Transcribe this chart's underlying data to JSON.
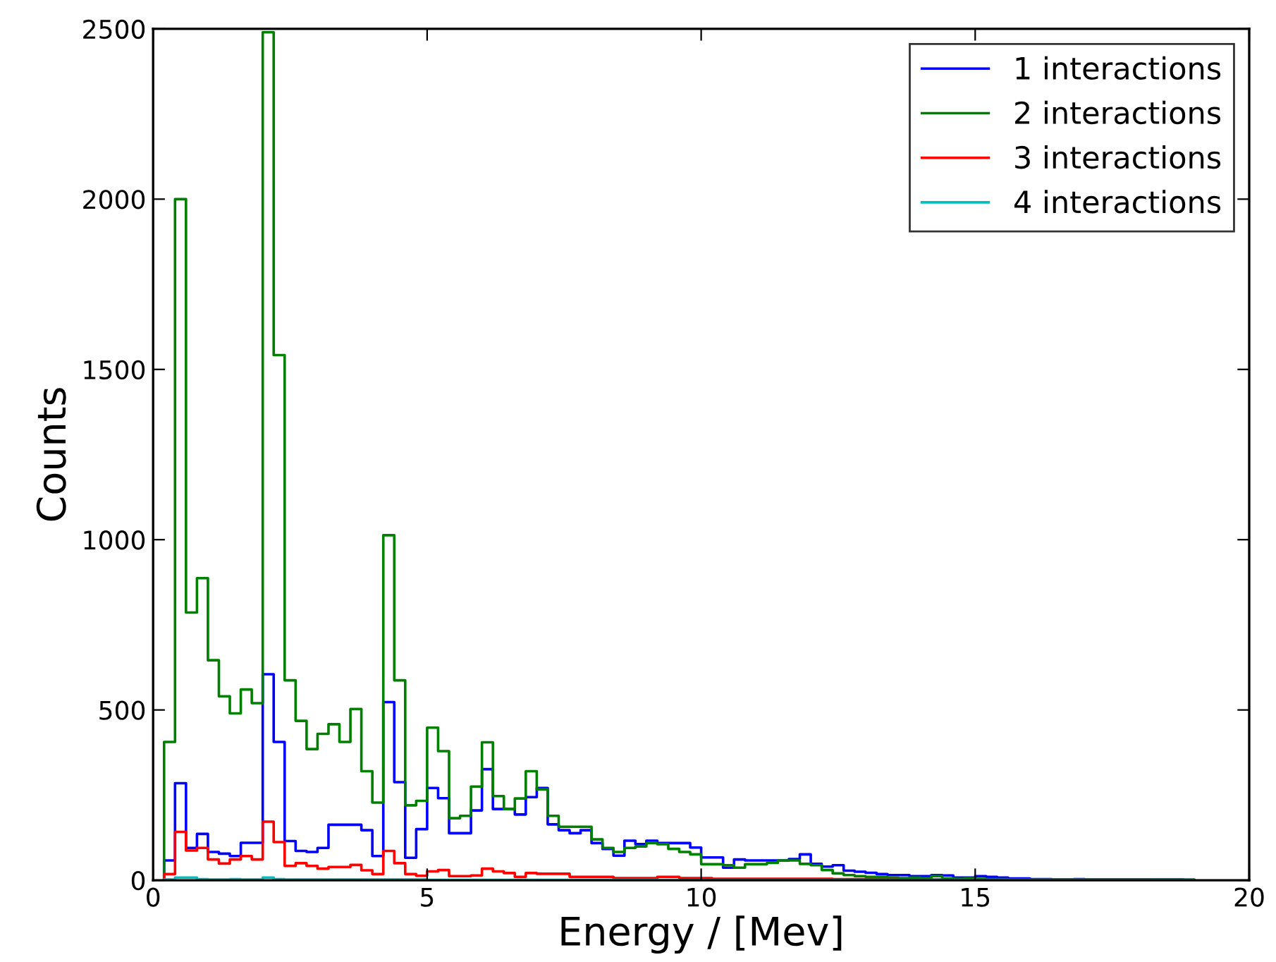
{
  "chart_data": {
    "type": "histogram",
    "xlabel": "Energy / [Mev]",
    "ylabel": "Counts",
    "bins": [
      0.2,
      0.4,
      0.6,
      0.8,
      1.0,
      1.2,
      1.4,
      1.6,
      1.8,
      2.0,
      2.2,
      2.4,
      2.6,
      2.8,
      3.0,
      3.2,
      3.4,
      3.6,
      3.8,
      4.0,
      4.2,
      4.4,
      4.6,
      4.8,
      5.0,
      5.2,
      5.4,
      5.6,
      5.8,
      6.0,
      6.2,
      6.4,
      6.6,
      6.8,
      7.0,
      7.2,
      7.4,
      7.6,
      7.8,
      8.0,
      8.2,
      8.4,
      8.6,
      8.8,
      9.0,
      9.2,
      9.4,
      9.6,
      9.8,
      10.0,
      10.2,
      10.4,
      10.6,
      10.8,
      11.0,
      11.2,
      11.4,
      11.6,
      11.8,
      12.0,
      12.2,
      12.4,
      12.6,
      12.8,
      13.0,
      13.2,
      13.4,
      13.6,
      13.8,
      14.0,
      14.2,
      14.4,
      14.6,
      14.8,
      15.0,
      15.2,
      15.4,
      15.6,
      15.8,
      16.0,
      16.2,
      16.4,
      16.6,
      16.8,
      17.0,
      17.2,
      17.4,
      17.6,
      17.8,
      18.0,
      18.2,
      18.4,
      18.6,
      18.8,
      19.0
    ],
    "series": [
      {
        "name": "1 interactions",
        "color": "#0000ff",
        "values": [
          58,
          285,
          95,
          136,
          83,
          78,
          71,
          110,
          110,
          605,
          406,
          115,
          86,
          83,
          95,
          163,
          163,
          163,
          147,
          71,
          523,
          288,
          66,
          150,
          271,
          241,
          138,
          138,
          205,
          326,
          209,
          209,
          193,
          244,
          271,
          164,
          147,
          138,
          147,
          109,
          92,
          72,
          116,
          106,
          116,
          109,
          109,
          109,
          96,
          67,
          67,
          37,
          61,
          58,
          58,
          58,
          58,
          62,
          76,
          48,
          40,
          44,
          28,
          25,
          22,
          18,
          15,
          15,
          12,
          12,
          15,
          14,
          8,
          8,
          12,
          10,
          8,
          5,
          5,
          3,
          3,
          2,
          2,
          3,
          2,
          2,
          2,
          2,
          2,
          2,
          2,
          2,
          2,
          0
        ]
      },
      {
        "name": "2 interactions",
        "color": "#008000",
        "values": [
          406,
          2000,
          786,
          887,
          646,
          540,
          490,
          560,
          520,
          2490,
          1542,
          587,
          468,
          385,
          430,
          458,
          406,
          503,
          320,
          228,
          1013,
          587,
          220,
          233,
          448,
          379,
          182,
          189,
          275,
          405,
          247,
          209,
          240,
          320,
          267,
          189,
          157,
          157,
          157,
          120,
          95,
          83,
          95,
          99,
          109,
          106,
          92,
          83,
          76,
          47,
          47,
          44,
          37,
          47,
          47,
          51,
          58,
          58,
          48,
          44,
          30,
          20,
          15,
          12,
          10,
          10,
          8,
          6,
          8,
          6,
          12,
          5,
          4,
          5,
          4,
          3,
          3,
          2,
          2,
          2,
          2,
          2,
          2,
          2,
          2,
          2,
          2,
          2,
          2,
          2,
          2,
          2,
          2,
          2
        ]
      },
      {
        "name": "3 interactions",
        "color": "#ff0000",
        "values": [
          18,
          142,
          87,
          95,
          61,
          49,
          61,
          71,
          61,
          172,
          112,
          42,
          50,
          42,
          34,
          39,
          39,
          45,
          29,
          18,
          86,
          50,
          18,
          13,
          26,
          30,
          12,
          12,
          14,
          34,
          26,
          21,
          10,
          21,
          19,
          19,
          19,
          10,
          10,
          10,
          10,
          6,
          6,
          6,
          6,
          10,
          10,
          6,
          6,
          6,
          4,
          4,
          4,
          4,
          4,
          4,
          4,
          4,
          4,
          4,
          4,
          3,
          3,
          3,
          3,
          3,
          3,
          2,
          2,
          2,
          2,
          2,
          2,
          2,
          2,
          2,
          1,
          1,
          1,
          1,
          1,
          1,
          1,
          1,
          1,
          1,
          1,
          1,
          1,
          1,
          0,
          0,
          0,
          0
        ]
      },
      {
        "name": "4 interactions",
        "color": "#00bfbf",
        "values": [
          2,
          8,
          8,
          3,
          2,
          2,
          3,
          2,
          2,
          8,
          3,
          2,
          2,
          2,
          2,
          2,
          2,
          2,
          2,
          2,
          2,
          2,
          2,
          2,
          1,
          1,
          1,
          1,
          1,
          1,
          1,
          1,
          1,
          1,
          1,
          1,
          1,
          1,
          1,
          1,
          1,
          1,
          1,
          1,
          1,
          0,
          0,
          0,
          0,
          0,
          0,
          0,
          0,
          0,
          0,
          0,
          0,
          0,
          0,
          0,
          0,
          0,
          0,
          0,
          0,
          0,
          0,
          0,
          0,
          0,
          0,
          0,
          0,
          0,
          0,
          0,
          0,
          0,
          0,
          0,
          0,
          0,
          0,
          0,
          0,
          0,
          0,
          0,
          0,
          0,
          0,
          0,
          0,
          0
        ]
      }
    ],
    "xlim": [
      0,
      20
    ],
    "xticks": [
      0,
      5,
      10,
      15,
      20
    ],
    "ylim": [
      0,
      2500
    ],
    "yticks": [
      0,
      500,
      1000,
      1500,
      2000,
      2500
    ],
    "grid": false,
    "legend": "top right"
  }
}
